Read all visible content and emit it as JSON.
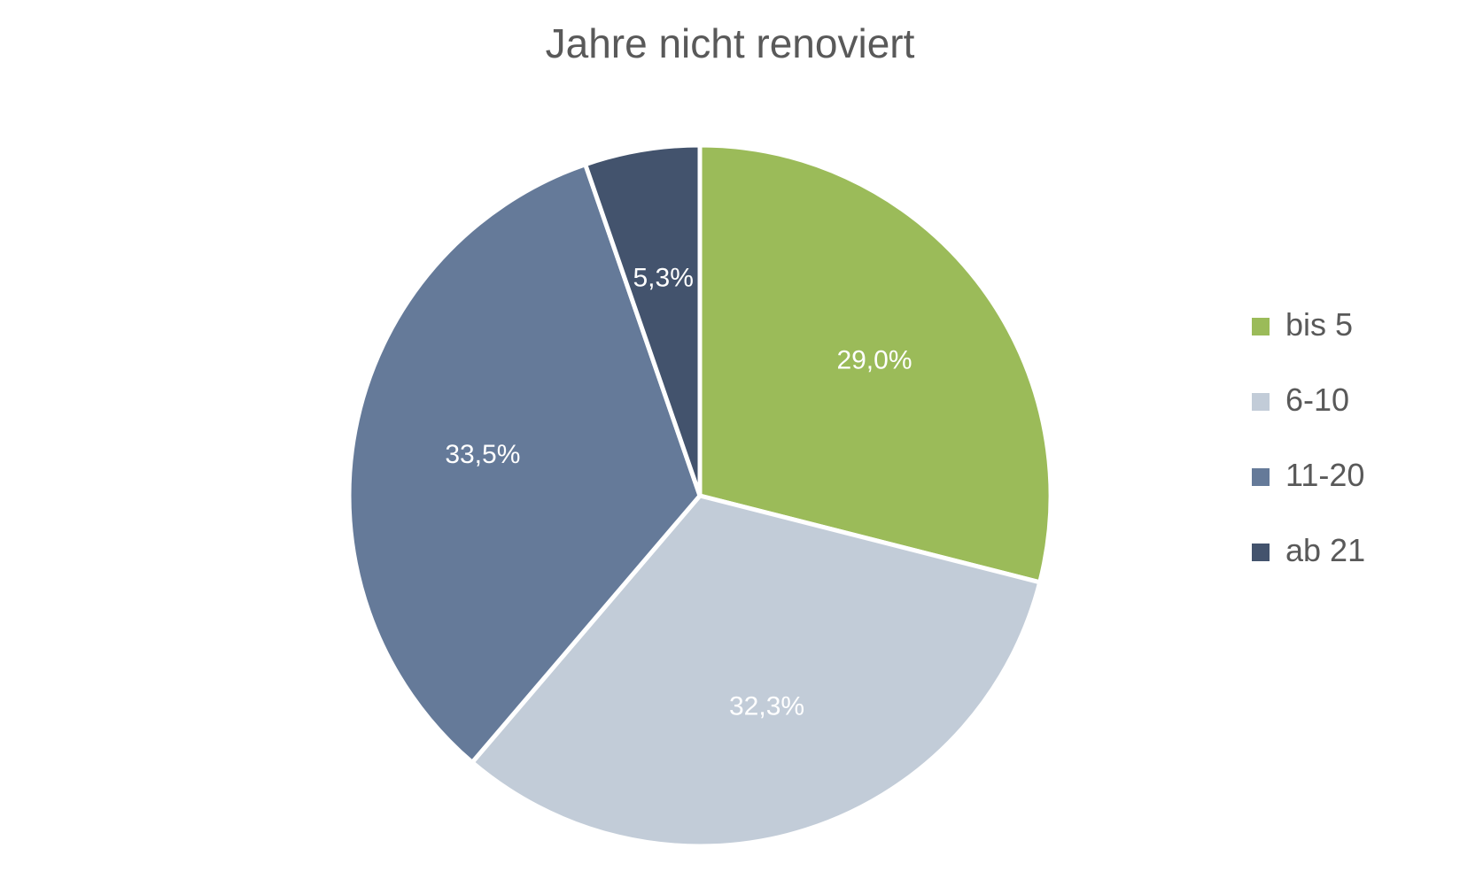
{
  "chart_data": {
    "type": "pie",
    "title": "Jahre nicht renoviert",
    "legend_position": "right",
    "slices": [
      {
        "name": "bis 5",
        "value": 29.0,
        "label": "29,0%",
        "color": "#9BBB59"
      },
      {
        "name": "6-10",
        "value": 32.3,
        "label": "32,3%",
        "color": "#C2CCD8"
      },
      {
        "name": "11-20",
        "value": 33.5,
        "label": "33,5%",
        "color": "#657A99"
      },
      {
        "name": "ab 21",
        "value": 5.3,
        "label": "5,3%",
        "color": "#43536D"
      }
    ]
  }
}
